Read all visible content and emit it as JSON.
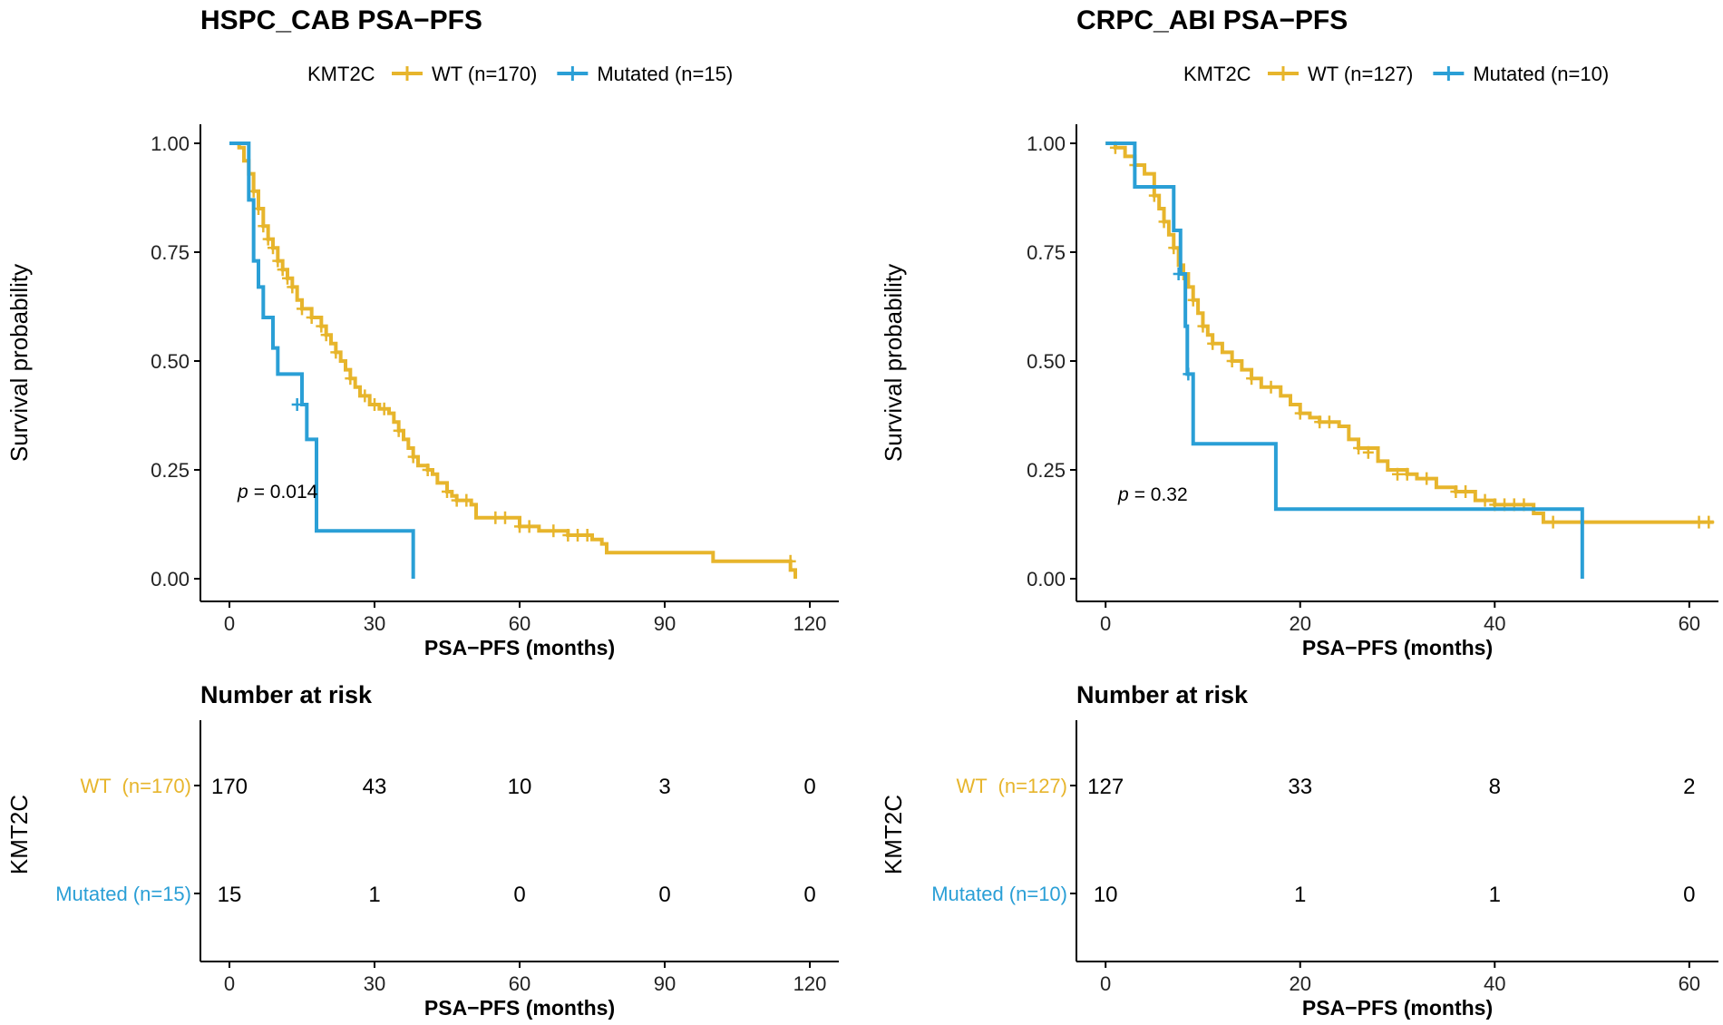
{
  "chart_data": [
    {
      "type": "line",
      "subtype": "kaplan-meier",
      "title": "HSPC_CAB PSA−PFS",
      "legend": {
        "title": "KMT2C",
        "position": "top",
        "entries": [
          "WT (n=170)",
          "Mutated (n=15)"
        ]
      },
      "xlabel": "PSA−PFS (months)",
      "ylabel": "Survival probability",
      "xlim": [
        -6,
        126
      ],
      "ylim": [
        0,
        1
      ],
      "xticks": [
        0,
        30,
        60,
        90,
        120
      ],
      "xtick_labels": [
        "0",
        "30",
        "60",
        "90",
        "120"
      ],
      "yticks": [
        0,
        0.25,
        0.5,
        0.75,
        1.0
      ],
      "ytick_labels": [
        "0.00",
        "0.25",
        "0.50",
        "0.75",
        "1.00"
      ],
      "p_label": "p",
      "p_value": "= 0.014",
      "series": [
        {
          "name": "WT (n=170)",
          "color": "#E7B52C",
          "steps": [
            [
              0,
              1.0
            ],
            [
              2,
              0.99
            ],
            [
              3,
              0.96
            ],
            [
              4,
              0.93
            ],
            [
              5,
              0.89
            ],
            [
              6,
              0.85
            ],
            [
              7,
              0.81
            ],
            [
              8,
              0.78
            ],
            [
              9,
              0.76
            ],
            [
              10,
              0.73
            ],
            [
              11,
              0.71
            ],
            [
              12,
              0.69
            ],
            [
              13,
              0.67
            ],
            [
              14,
              0.64
            ],
            [
              15,
              0.62
            ],
            [
              17,
              0.6
            ],
            [
              19,
              0.58
            ],
            [
              20,
              0.56
            ],
            [
              21,
              0.54
            ],
            [
              22,
              0.52
            ],
            [
              23,
              0.5
            ],
            [
              24,
              0.48
            ],
            [
              25,
              0.46
            ],
            [
              26,
              0.44
            ],
            [
              27,
              0.42
            ],
            [
              29,
              0.4
            ],
            [
              31,
              0.39
            ],
            [
              33,
              0.38
            ],
            [
              34,
              0.36
            ],
            [
              35,
              0.34
            ],
            [
              36,
              0.32
            ],
            [
              37,
              0.3
            ],
            [
              38,
              0.28
            ],
            [
              39,
              0.26
            ],
            [
              41,
              0.25
            ],
            [
              42,
              0.24
            ],
            [
              43,
              0.22
            ],
            [
              45,
              0.2
            ],
            [
              46,
              0.19
            ],
            [
              47,
              0.18
            ],
            [
              50,
              0.17
            ],
            [
              51,
              0.14
            ],
            [
              60,
              0.12
            ],
            [
              62,
              0.12
            ],
            [
              64,
              0.11
            ],
            [
              70,
              0.1
            ],
            [
              75,
              0.09
            ],
            [
              77,
              0.08
            ],
            [
              78,
              0.06
            ],
            [
              91,
              0.06
            ],
            [
              100,
              0.04
            ],
            [
              115,
              0.04
            ],
            [
              116,
              0.02
            ],
            [
              117,
              0.0
            ]
          ],
          "end": 117,
          "censored": [
            [
              5,
              0.89
            ],
            [
              6,
              0.85
            ],
            [
              7,
              0.81
            ],
            [
              8,
              0.78
            ],
            [
              9,
              0.76
            ],
            [
              10,
              0.73
            ],
            [
              11,
              0.71
            ],
            [
              12,
              0.69
            ],
            [
              13,
              0.67
            ],
            [
              15,
              0.62
            ],
            [
              17,
              0.6
            ],
            [
              19,
              0.58
            ],
            [
              20,
              0.56
            ],
            [
              22,
              0.52
            ],
            [
              25,
              0.46
            ],
            [
              28,
              0.42
            ],
            [
              30,
              0.4
            ],
            [
              32,
              0.39
            ],
            [
              35,
              0.34
            ],
            [
              38,
              0.28
            ],
            [
              41,
              0.25
            ],
            [
              45,
              0.2
            ],
            [
              47,
              0.18
            ],
            [
              49,
              0.18
            ],
            [
              55,
              0.14
            ],
            [
              57,
              0.14
            ],
            [
              60,
              0.12
            ],
            [
              62,
              0.12
            ],
            [
              67,
              0.11
            ],
            [
              70,
              0.1
            ],
            [
              72,
              0.1
            ],
            [
              74,
              0.1
            ],
            [
              116,
              0.04
            ]
          ]
        },
        {
          "name": "Mutated (n=15)",
          "color": "#2A9FD6",
          "steps": [
            [
              0,
              1.0
            ],
            [
              4,
              0.87
            ],
            [
              5,
              0.73
            ],
            [
              6,
              0.67
            ],
            [
              7,
              0.6
            ],
            [
              9,
              0.53
            ],
            [
              10,
              0.47
            ],
            [
              15,
              0.4
            ],
            [
              16,
              0.32
            ],
            [
              18,
              0.11
            ],
            [
              38,
              0.0
            ]
          ],
          "end": 38,
          "censored": [
            [
              14,
              0.4
            ]
          ]
        }
      ],
      "risk_table": {
        "title": "Number at risk",
        "ylabel": "KMT2C",
        "xlabel": "PSA−PFS (months)",
        "times": [
          0,
          30,
          60,
          90,
          120
        ],
        "rows": [
          {
            "label": "WT  (n=170)",
            "color": "#E7B52C",
            "counts": [
              "170",
              "43",
              "10",
              "3",
              "0"
            ]
          },
          {
            "label": "Mutated (n=15)",
            "color": "#2A9FD6",
            "counts": [
              "15",
              "1",
              "0",
              "0",
              "0"
            ]
          }
        ]
      }
    },
    {
      "type": "line",
      "subtype": "kaplan-meier",
      "title": "CRPC_ABI PSA−PFS",
      "legend": {
        "title": "KMT2C",
        "position": "top",
        "entries": [
          "WT (n=127)",
          "Mutated (n=10)"
        ]
      },
      "xlabel": "PSA−PFS (months)",
      "ylabel": "Survival probability",
      "xlim": [
        -3,
        63
      ],
      "ylim": [
        0,
        1
      ],
      "xticks": [
        0,
        20,
        40,
        60
      ],
      "xtick_labels": [
        "0",
        "20",
        "40",
        "60"
      ],
      "yticks": [
        0,
        0.25,
        0.5,
        0.75,
        1.0
      ],
      "ytick_labels": [
        "0.00",
        "0.25",
        "0.50",
        "0.75",
        "1.00"
      ],
      "p_label": "p",
      "p_value": "= 0.32",
      "series": [
        {
          "name": "WT (n=127)",
          "color": "#E7B52C",
          "steps": [
            [
              0,
              1.0
            ],
            [
              1,
              0.99
            ],
            [
              2,
              0.97
            ],
            [
              3,
              0.95
            ],
            [
              4,
              0.93
            ],
            [
              5,
              0.88
            ],
            [
              5.5,
              0.85
            ],
            [
              6,
              0.82
            ],
            [
              6.5,
              0.79
            ],
            [
              7,
              0.76
            ],
            [
              7.5,
              0.72
            ],
            [
              8,
              0.7
            ],
            [
              8.5,
              0.67
            ],
            [
              9,
              0.64
            ],
            [
              9.5,
              0.61
            ],
            [
              10,
              0.58
            ],
            [
              10.5,
              0.56
            ],
            [
              11,
              0.54
            ],
            [
              12,
              0.52
            ],
            [
              13,
              0.5
            ],
            [
              14,
              0.48
            ],
            [
              15,
              0.46
            ],
            [
              16,
              0.44
            ],
            [
              18,
              0.42
            ],
            [
              19,
              0.4
            ],
            [
              20,
              0.38
            ],
            [
              21,
              0.37
            ],
            [
              22,
              0.36
            ],
            [
              24,
              0.35
            ],
            [
              25,
              0.32
            ],
            [
              26,
              0.3
            ],
            [
              28,
              0.27
            ],
            [
              29,
              0.25
            ],
            [
              31,
              0.24
            ],
            [
              32,
              0.23
            ],
            [
              34,
              0.21
            ],
            [
              36,
              0.2
            ],
            [
              38,
              0.18
            ],
            [
              40,
              0.17
            ],
            [
              44,
              0.15
            ],
            [
              45,
              0.13
            ]
          ],
          "end": 62.5,
          "censored": [
            [
              1,
              0.99
            ],
            [
              3,
              0.95
            ],
            [
              5,
              0.88
            ],
            [
              6,
              0.82
            ],
            [
              7,
              0.76
            ],
            [
              8,
              0.7
            ],
            [
              9,
              0.64
            ],
            [
              10,
              0.58
            ],
            [
              11,
              0.54
            ],
            [
              13,
              0.5
            ],
            [
              15,
              0.46
            ],
            [
              17,
              0.44
            ],
            [
              20,
              0.38
            ],
            [
              22,
              0.36
            ],
            [
              23,
              0.36
            ],
            [
              26,
              0.3
            ],
            [
              27,
              0.29
            ],
            [
              30,
              0.24
            ],
            [
              31,
              0.24
            ],
            [
              33,
              0.23
            ],
            [
              36,
              0.2
            ],
            [
              37,
              0.2
            ],
            [
              39,
              0.18
            ],
            [
              40,
              0.17
            ],
            [
              41,
              0.17
            ],
            [
              42,
              0.17
            ],
            [
              43,
              0.17
            ],
            [
              46,
              0.13
            ],
            [
              61,
              0.13
            ],
            [
              62,
              0.13
            ]
          ]
        },
        {
          "name": "Mutated (n=10)",
          "color": "#2A9FD6",
          "steps": [
            [
              0,
              1.0
            ],
            [
              3,
              0.9
            ],
            [
              7,
              0.8
            ],
            [
              7.7,
              0.7
            ],
            [
              8.2,
              0.58
            ],
            [
              8.4,
              0.47
            ],
            [
              9,
              0.31
            ],
            [
              17.5,
              0.16
            ],
            [
              49,
              0.0
            ]
          ],
          "end": 49,
          "censored": [
            [
              7.5,
              0.7
            ],
            [
              8.5,
              0.47
            ]
          ]
        }
      ],
      "risk_table": {
        "title": "Number at risk",
        "ylabel": "KMT2C",
        "xlabel": "PSA−PFS (months)",
        "times": [
          0,
          20,
          40,
          60
        ],
        "rows": [
          {
            "label": "WT  (n=127)",
            "color": "#E7B52C",
            "counts": [
              "127",
              "33",
              "8",
              "2"
            ]
          },
          {
            "label": "Mutated (n=10)",
            "color": "#2A9FD6",
            "counts": [
              "10",
              "1",
              "1",
              "0"
            ]
          }
        ]
      }
    }
  ]
}
